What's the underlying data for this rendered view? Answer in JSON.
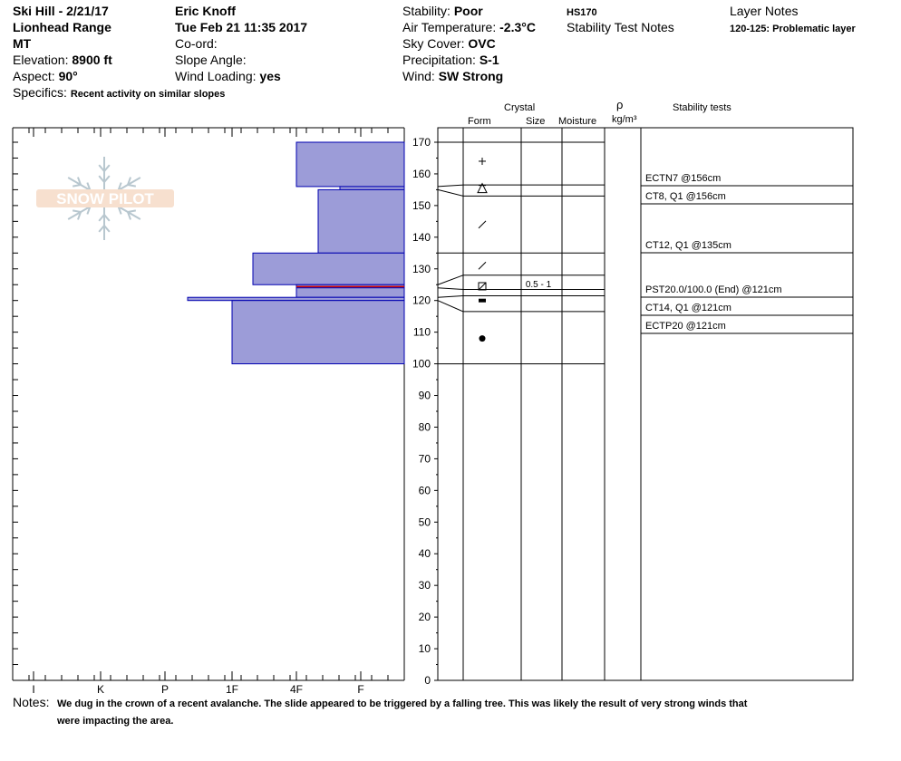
{
  "header": {
    "location": "Ski Hill - 2/21/17",
    "range": "Lionhead Range",
    "state": "MT",
    "elevation_label": "Elevation:",
    "elevation": "8900 ft",
    "aspect_label": "Aspect:",
    "aspect": "90°",
    "specifics_label": "Specifics:",
    "specifics": "Recent activity on similar slopes",
    "observer": "Eric Knoff",
    "datetime": "Tue Feb 21 11:35 2017",
    "coord_label": "Co-ord:",
    "slope_label": "Slope Angle:",
    "wind_loading_label": "Wind Loading:",
    "wind_loading": "yes",
    "stability_label": "Stability:",
    "stability": "Poor",
    "air_temp_label": "Air Temperature:",
    "air_temp": "-2.3°C",
    "sky_label": "Sky Cover:",
    "sky": "OVC",
    "precip_label": "Precipitation:",
    "precip": "S-1",
    "wind_label": "Wind:",
    "wind": "SW Strong",
    "hs": "HS170",
    "stability_notes_label": "Stability Test Notes",
    "layer_notes_label": "Layer Notes",
    "layer_note": "120-125: Problematic layer"
  },
  "logo": {
    "text": "SNOW PILOT"
  },
  "columns": {
    "crystal": "Crystal",
    "form": "Form",
    "size": "Size",
    "moisture": "Moisture",
    "rho": "ρ",
    "density_unit": "kg/m³",
    "stability_tests": "Stability tests"
  },
  "hardness_axis": [
    "I",
    "K",
    "P",
    "1F",
    "4F",
    "F"
  ],
  "depth_axis": {
    "min": 0,
    "max": 170,
    "step": 10
  },
  "layers": [
    {
      "top": 170,
      "bottom": 156,
      "hardness": "4F",
      "form": "plus-icon"
    },
    {
      "top": 156,
      "bottom": 155,
      "hardness": "F+",
      "form": "surface-hoar-icon"
    },
    {
      "top": 155,
      "bottom": 135,
      "hardness": "4F-",
      "form": "slash-icon"
    },
    {
      "top": 135,
      "bottom": 125,
      "hardness": "1F+",
      "form": "slash-icon"
    },
    {
      "top": 125,
      "bottom": 124,
      "hardness": "4F",
      "form": ""
    },
    {
      "top": 124,
      "bottom": 121,
      "hardness": "4F",
      "form": "faceted-icon",
      "size": "0.5 - 1"
    },
    {
      "top": 121,
      "bottom": 120,
      "hardness": "P+",
      "form": ""
    },
    {
      "top": 120,
      "bottom": 100,
      "hardness": "1F",
      "form": "dot-icon"
    }
  ],
  "form_rows": [
    {
      "y": 164,
      "icon": "plus-icon"
    },
    {
      "y": 155.5,
      "icon": "surface-hoar-icon"
    },
    {
      "y": 144,
      "icon": "slash-icon"
    },
    {
      "y": 131,
      "icon": "slash-icon"
    },
    {
      "y": 124.5,
      "icon": "faceted-icon"
    },
    {
      "y": 120,
      "icon": "dash-icon"
    },
    {
      "y": 108,
      "icon": "dot-icon"
    }
  ],
  "size_note": "0.5 - 1",
  "stability_tests": [
    "ECTN7 @156cm",
    "CT8, Q1 @156cm",
    "CT12, Q1 @135cm",
    "PST20.0/100.0 (End) @121cm",
    "CT14, Q1 @121cm",
    "ECTP20 @121cm"
  ],
  "notes_label": "Notes:",
  "notes_line1": "We dug in the crown of a recent avalanche. The slide appeared to be triggered by a falling tree. This was likely the result of very strong winds that",
  "notes_line2": "were impacting the area.",
  "colors": {
    "layer_fill": "#9c9cd8",
    "layer_stroke": "#0000b0",
    "weak_layer": "#cc0000"
  }
}
